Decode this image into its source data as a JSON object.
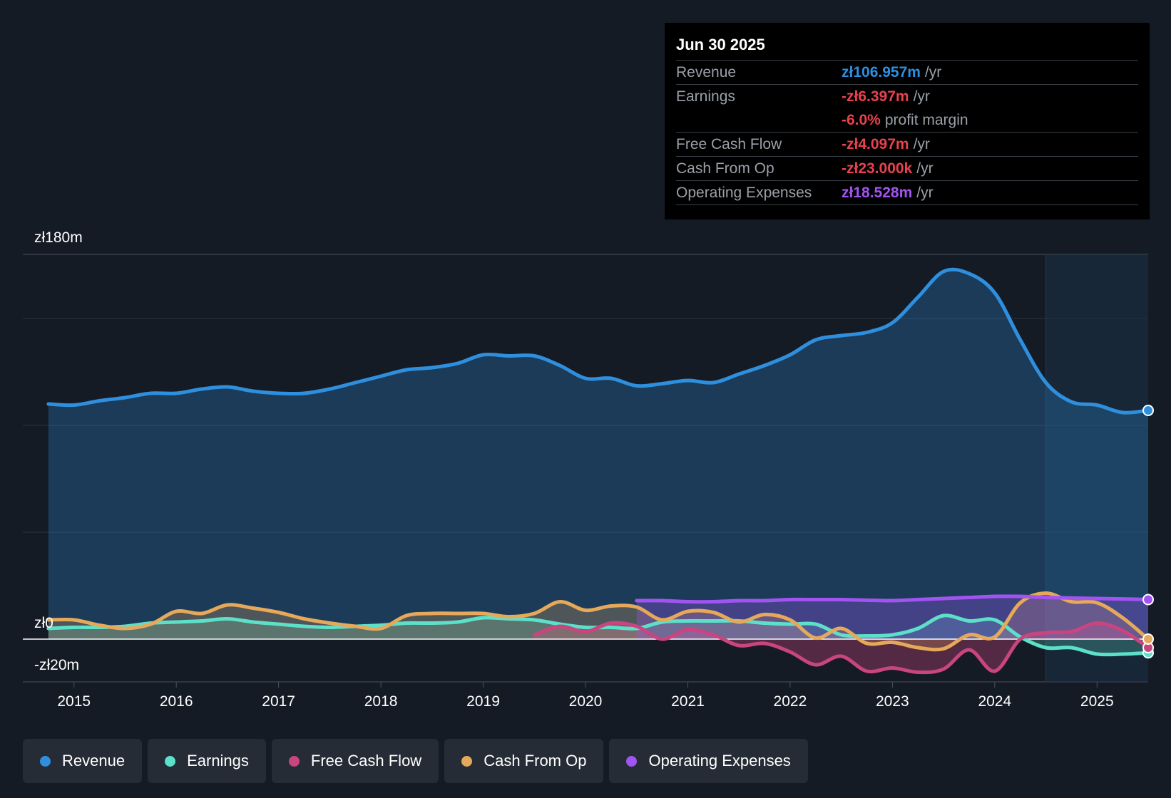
{
  "tooltip": {
    "date": "Jun 30 2025",
    "rows": [
      {
        "label": "Revenue",
        "value": "zł106.957m",
        "unit": "/yr",
        "color": "#2e8fdf"
      },
      {
        "label": "Earnings",
        "value": "-zł6.397m",
        "unit": "/yr",
        "color": "#e8414f"
      },
      {
        "label": "",
        "value": "-6.0%",
        "unit": "profit margin",
        "color": "#e8414f"
      },
      {
        "label": "Free Cash Flow",
        "value": "-zł4.097m",
        "unit": "/yr",
        "color": "#e8414f"
      },
      {
        "label": "Cash From Op",
        "value": "-zł23.000k",
        "unit": "/yr",
        "color": "#e8414f"
      },
      {
        "label": "Operating Expenses",
        "value": "zł18.528m",
        "unit": "/yr",
        "color": "#a154f2"
      }
    ]
  },
  "legend": [
    {
      "label": "Revenue",
      "color": "#2e8fdf"
    },
    {
      "label": "Earnings",
      "color": "#5ce0c9"
    },
    {
      "label": "Free Cash Flow",
      "color": "#c9457f"
    },
    {
      "label": "Cash From Op",
      "color": "#e6a95a"
    },
    {
      "label": "Operating Expenses",
      "color": "#a154f2"
    }
  ],
  "chart_data": {
    "type": "area",
    "y_labels": {
      "top": "zł180m",
      "zero": "zł0",
      "bottom": "-zł20m"
    },
    "ylim": [
      -20,
      180
    ],
    "xlim": [
      2014.5,
      2025.5
    ],
    "x_ticks": [
      2015,
      2016,
      2017,
      2018,
      2019,
      2020,
      2021,
      2022,
      2023,
      2024,
      2025
    ],
    "highlight_start": 2024.5,
    "series": [
      {
        "name": "Revenue",
        "color": "#2e8fdf",
        "fill": true,
        "points": [
          [
            2014.75,
            110
          ],
          [
            2015.0,
            109.5
          ],
          [
            2015.25,
            111.5
          ],
          [
            2015.5,
            113
          ],
          [
            2015.75,
            115
          ],
          [
            2016.0,
            115
          ],
          [
            2016.25,
            117
          ],
          [
            2016.5,
            118
          ],
          [
            2016.75,
            116
          ],
          [
            2017.0,
            115
          ],
          [
            2017.25,
            115
          ],
          [
            2017.5,
            117
          ],
          [
            2017.75,
            120
          ],
          [
            2018.0,
            123
          ],
          [
            2018.25,
            126
          ],
          [
            2018.5,
            127
          ],
          [
            2018.75,
            129
          ],
          [
            2019.0,
            133
          ],
          [
            2019.25,
            132.5
          ],
          [
            2019.5,
            132.5
          ],
          [
            2019.75,
            128
          ],
          [
            2020.0,
            122
          ],
          [
            2020.25,
            122
          ],
          [
            2020.5,
            118.5
          ],
          [
            2020.75,
            119.5
          ],
          [
            2021.0,
            121
          ],
          [
            2021.25,
            120
          ],
          [
            2021.5,
            124
          ],
          [
            2021.75,
            128
          ],
          [
            2022.0,
            133
          ],
          [
            2022.25,
            140
          ],
          [
            2022.5,
            142
          ],
          [
            2022.75,
            143.5
          ],
          [
            2023.0,
            148
          ],
          [
            2023.25,
            160
          ],
          [
            2023.5,
            172
          ],
          [
            2023.75,
            171
          ],
          [
            2024.0,
            162
          ],
          [
            2024.25,
            140
          ],
          [
            2024.5,
            120
          ],
          [
            2024.75,
            111
          ],
          [
            2025.0,
            109.5
          ],
          [
            2025.25,
            106
          ],
          [
            2025.5,
            107
          ]
        ]
      },
      {
        "name": "Earnings",
        "color": "#5ce0c9",
        "fill": true,
        "points": [
          [
            2014.75,
            5
          ],
          [
            2015.0,
            5.5
          ],
          [
            2015.25,
            5.5
          ],
          [
            2015.5,
            6
          ],
          [
            2015.75,
            7.5
          ],
          [
            2016.0,
            8
          ],
          [
            2016.25,
            8.5
          ],
          [
            2016.5,
            9.5
          ],
          [
            2016.75,
            8
          ],
          [
            2017.0,
            7
          ],
          [
            2017.25,
            6
          ],
          [
            2017.5,
            5.5
          ],
          [
            2017.75,
            6
          ],
          [
            2018.0,
            6.5
          ],
          [
            2018.25,
            7.5
          ],
          [
            2018.5,
            7.5
          ],
          [
            2018.75,
            8
          ],
          [
            2019.0,
            10
          ],
          [
            2019.25,
            9.5
          ],
          [
            2019.5,
            9
          ],
          [
            2019.75,
            7
          ],
          [
            2020.0,
            5.5
          ],
          [
            2020.25,
            5.5
          ],
          [
            2020.5,
            5
          ],
          [
            2020.75,
            8
          ],
          [
            2021.0,
            8.5
          ],
          [
            2021.25,
            8.5
          ],
          [
            2021.5,
            8.5
          ],
          [
            2021.75,
            7.5
          ],
          [
            2022.0,
            7
          ],
          [
            2022.25,
            7
          ],
          [
            2022.5,
            2
          ],
          [
            2022.75,
            1.5
          ],
          [
            2023.0,
            2
          ],
          [
            2023.25,
            5
          ],
          [
            2023.5,
            11
          ],
          [
            2023.75,
            8.5
          ],
          [
            2024.0,
            9
          ],
          [
            2024.25,
            1
          ],
          [
            2024.5,
            -4
          ],
          [
            2024.75,
            -4
          ],
          [
            2025.0,
            -7
          ],
          [
            2025.25,
            -7
          ],
          [
            2025.5,
            -6.4
          ]
        ]
      },
      {
        "name": "Free Cash Flow",
        "color": "#c9457f",
        "fill": true,
        "points": [
          [
            2019.5,
            2
          ],
          [
            2019.75,
            6
          ],
          [
            2020.0,
            3.5
          ],
          [
            2020.25,
            7.5
          ],
          [
            2020.5,
            6
          ],
          [
            2020.75,
            0
          ],
          [
            2021.0,
            4.5
          ],
          [
            2021.25,
            2
          ],
          [
            2021.5,
            -3
          ],
          [
            2021.75,
            -2
          ],
          [
            2022.0,
            -6
          ],
          [
            2022.25,
            -12
          ],
          [
            2022.5,
            -8
          ],
          [
            2022.75,
            -15
          ],
          [
            2023.0,
            -13.5
          ],
          [
            2023.25,
            -15.5
          ],
          [
            2023.5,
            -14
          ],
          [
            2023.75,
            -5
          ],
          [
            2024.0,
            -15
          ],
          [
            2024.25,
            0
          ],
          [
            2024.5,
            3
          ],
          [
            2024.75,
            3.5
          ],
          [
            2025.0,
            7.5
          ],
          [
            2025.25,
            4
          ],
          [
            2025.5,
            -4
          ]
        ]
      },
      {
        "name": "Cash From Op",
        "color": "#e6a95a",
        "fill": true,
        "points": [
          [
            2014.75,
            9
          ],
          [
            2015.0,
            9
          ],
          [
            2015.25,
            6.5
          ],
          [
            2015.5,
            5
          ],
          [
            2015.75,
            7
          ],
          [
            2016.0,
            13
          ],
          [
            2016.25,
            12
          ],
          [
            2016.5,
            16
          ],
          [
            2016.75,
            14.5
          ],
          [
            2017.0,
            12.5
          ],
          [
            2017.25,
            9.5
          ],
          [
            2017.5,
            7.5
          ],
          [
            2017.75,
            6
          ],
          [
            2018.0,
            5
          ],
          [
            2018.25,
            11
          ],
          [
            2018.5,
            12
          ],
          [
            2018.75,
            12
          ],
          [
            2019.0,
            12
          ],
          [
            2019.25,
            10.5
          ],
          [
            2019.5,
            12
          ],
          [
            2019.75,
            17.5
          ],
          [
            2020.0,
            13.5
          ],
          [
            2020.25,
            15.5
          ],
          [
            2020.5,
            15
          ],
          [
            2020.75,
            9
          ],
          [
            2021.0,
            13
          ],
          [
            2021.25,
            12.5
          ],
          [
            2021.5,
            8
          ],
          [
            2021.75,
            11.5
          ],
          [
            2022.0,
            9
          ],
          [
            2022.25,
            0.5
          ],
          [
            2022.5,
            5
          ],
          [
            2022.75,
            -2
          ],
          [
            2023.0,
            -1.5
          ],
          [
            2023.25,
            -4
          ],
          [
            2023.5,
            -4.5
          ],
          [
            2023.75,
            2
          ],
          [
            2024.0,
            1
          ],
          [
            2024.25,
            17
          ],
          [
            2024.5,
            21.5
          ],
          [
            2024.75,
            17.5
          ],
          [
            2025.0,
            17
          ],
          [
            2025.25,
            10
          ],
          [
            2025.5,
            0
          ]
        ]
      },
      {
        "name": "Operating Expenses",
        "color": "#a154f2",
        "fill": true,
        "points": [
          [
            2020.5,
            18
          ],
          [
            2020.75,
            18
          ],
          [
            2021.0,
            17.5
          ],
          [
            2021.25,
            17.5
          ],
          [
            2021.5,
            18
          ],
          [
            2021.75,
            18
          ],
          [
            2022.0,
            18.5
          ],
          [
            2022.25,
            18.5
          ],
          [
            2022.5,
            18.5
          ],
          [
            2022.75,
            18.2
          ],
          [
            2023.0,
            18
          ],
          [
            2023.25,
            18.5
          ],
          [
            2023.5,
            19
          ],
          [
            2023.75,
            19.5
          ],
          [
            2024.0,
            20
          ],
          [
            2024.25,
            20
          ],
          [
            2024.5,
            19.5
          ],
          [
            2024.75,
            19.2
          ],
          [
            2025.0,
            19
          ],
          [
            2025.25,
            18.8
          ],
          [
            2025.5,
            18.5
          ]
        ]
      }
    ]
  }
}
